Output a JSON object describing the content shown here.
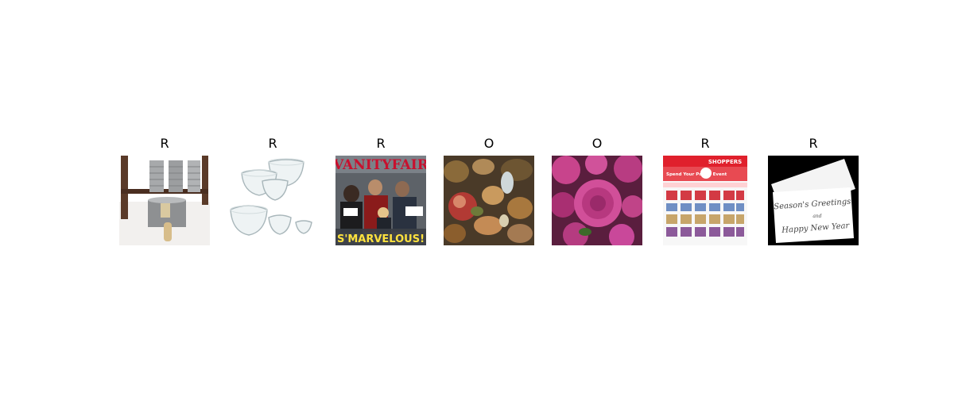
{
  "panels": [
    {
      "label": "R",
      "image": "metal-tin-cans-on-wooden-rack"
    },
    {
      "label": "R",
      "image": "glass-mixing-bowls-set"
    },
    {
      "label": "R",
      "image": "magazine-cover-superheroes",
      "cover_caption": "S'MARVELOUS!"
    },
    {
      "label": "O",
      "image": "food-scraps-compost"
    },
    {
      "label": "O",
      "image": "pink-dahlia-flowers"
    },
    {
      "label": "R",
      "image": "retail-flyer-ad",
      "header_text": "SHOPPERS",
      "headline": "Spend Your Points Event"
    },
    {
      "label": "R",
      "image": "seasons-greetings-card",
      "card_line1": "Season's Greetings",
      "card_line2": "and",
      "card_line3": "Happy New Year"
    }
  ]
}
